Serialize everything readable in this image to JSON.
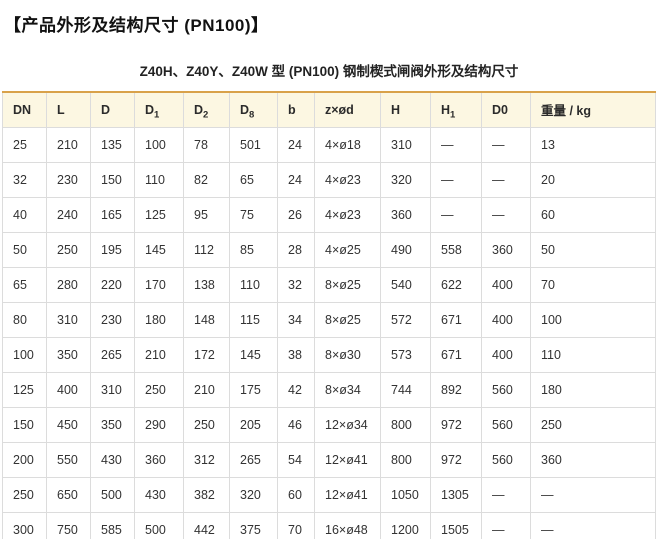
{
  "page": {
    "title": "【产品外形及结构尺寸 (PN100)】",
    "table_caption": "Z40H、Z40Y、Z40W 型 (PN100) 钢制楔式闸阀外形及结构尺寸"
  },
  "colors": {
    "header_bg": "#fcf7e2",
    "table_top_border": "#d9a24a",
    "grid_line": "#dcdcdc",
    "text": "#333333"
  },
  "table": {
    "columns": [
      {
        "id": "dn",
        "label": "DN",
        "sub": ""
      },
      {
        "id": "l",
        "label": "L",
        "sub": ""
      },
      {
        "id": "d",
        "label": "D",
        "sub": ""
      },
      {
        "id": "d1",
        "label": "D",
        "sub": "1"
      },
      {
        "id": "d2",
        "label": "D",
        "sub": "2"
      },
      {
        "id": "d8",
        "label": "D",
        "sub": "8"
      },
      {
        "id": "b",
        "label": "b",
        "sub": ""
      },
      {
        "id": "zxod",
        "label": "z×ød",
        "sub": ""
      },
      {
        "id": "h",
        "label": "H",
        "sub": ""
      },
      {
        "id": "h1",
        "label": "H",
        "sub": "1"
      },
      {
        "id": "d0",
        "label": "D0",
        "sub": ""
      },
      {
        "id": "weight",
        "label": "重量 / kg",
        "sub": ""
      }
    ],
    "rows": [
      [
        "25",
        "210",
        "135",
        "100",
        "78",
        "501",
        "24",
        "4×ø18",
        "310",
        "—",
        "—",
        "13"
      ],
      [
        "32",
        "230",
        "150",
        "110",
        "82",
        "65",
        "24",
        "4×ø23",
        "320",
        "—",
        "—",
        "20"
      ],
      [
        "40",
        "240",
        "165",
        "125",
        "95",
        "75",
        "26",
        "4×ø23",
        "360",
        "—",
        "—",
        "60"
      ],
      [
        "50",
        "250",
        "195",
        "145",
        "112",
        "85",
        "28",
        "4×ø25",
        "490",
        "558",
        "360",
        "50"
      ],
      [
        "65",
        "280",
        "220",
        "170",
        "138",
        "110",
        "32",
        "8×ø25",
        "540",
        "622",
        "400",
        "70"
      ],
      [
        "80",
        "310",
        "230",
        "180",
        "148",
        "115",
        "34",
        "8×ø25",
        "572",
        "671",
        "400",
        "100"
      ],
      [
        "100",
        "350",
        "265",
        "210",
        "172",
        "145",
        "38",
        "8×ø30",
        "573",
        "671",
        "400",
        "110"
      ],
      [
        "125",
        "400",
        "310",
        "250",
        "210",
        "175",
        "42",
        "8×ø34",
        "744",
        "892",
        "560",
        "180"
      ],
      [
        "150",
        "450",
        "350",
        "290",
        "250",
        "205",
        "46",
        "12×ø34",
        "800",
        "972",
        "560",
        "250"
      ],
      [
        "200",
        "550",
        "430",
        "360",
        "312",
        "265",
        "54",
        "12×ø41",
        "800",
        "972",
        "560",
        "360"
      ],
      [
        "250",
        "650",
        "500",
        "430",
        "382",
        "320",
        "60",
        "12×ø41",
        "1050",
        "1305",
        "—",
        "—"
      ],
      [
        "300",
        "750",
        "585",
        "500",
        "442",
        "375",
        "70",
        "16×ø48",
        "1200",
        "1505",
        "—",
        "—"
      ]
    ]
  }
}
